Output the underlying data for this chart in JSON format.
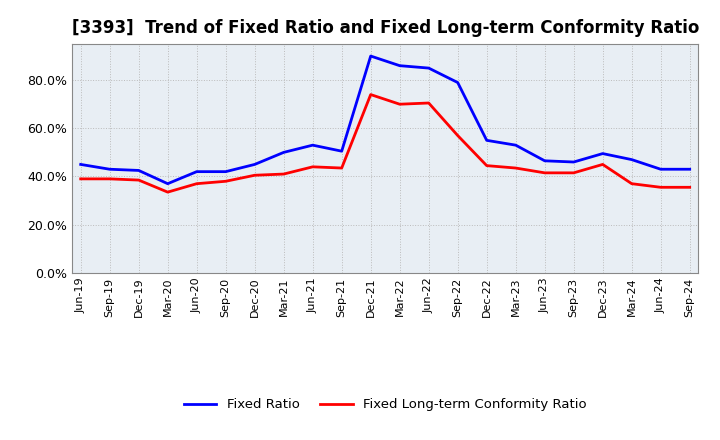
{
  "title": "[3393]  Trend of Fixed Ratio and Fixed Long-term Conformity Ratio",
  "x_labels": [
    "Jun-19",
    "Sep-19",
    "Dec-19",
    "Mar-20",
    "Jun-20",
    "Sep-20",
    "Dec-20",
    "Mar-21",
    "Jun-21",
    "Sep-21",
    "Dec-21",
    "Mar-22",
    "Jun-22",
    "Sep-22",
    "Dec-22",
    "Mar-23",
    "Jun-23",
    "Sep-23",
    "Dec-23",
    "Mar-24",
    "Jun-24",
    "Sep-24"
  ],
  "fixed_ratio": [
    45.0,
    43.0,
    42.5,
    37.0,
    42.0,
    42.0,
    45.0,
    50.0,
    53.0,
    50.5,
    90.0,
    86.0,
    85.0,
    79.0,
    55.0,
    53.0,
    46.5,
    46.0,
    49.5,
    47.0,
    43.0,
    43.0
  ],
  "fixed_lt_ratio": [
    39.0,
    39.0,
    38.5,
    33.5,
    37.0,
    38.0,
    40.5,
    41.0,
    44.0,
    43.5,
    74.0,
    70.0,
    70.5,
    57.0,
    44.5,
    43.5,
    41.5,
    41.5,
    45.0,
    37.0,
    35.5,
    35.5
  ],
  "fixed_ratio_color": "#0000FF",
  "fixed_lt_ratio_color": "#FF0000",
  "ylim": [
    0,
    95
  ],
  "yticks": [
    0,
    20,
    40,
    60,
    80
  ],
  "ytick_labels": [
    "0.0%",
    "20.0%",
    "40.0%",
    "60.0%",
    "80.0%"
  ],
  "background_color": "#FFFFFF",
  "grid_color": "#BBBBBB",
  "plot_bg_color": "#E8EEF4",
  "line_width": 2.0,
  "title_fontsize": 12,
  "legend_labels": [
    "Fixed Ratio",
    "Fixed Long-term Conformity Ratio"
  ],
  "legend_line_colors": [
    "#0000FF",
    "#FF0000"
  ]
}
